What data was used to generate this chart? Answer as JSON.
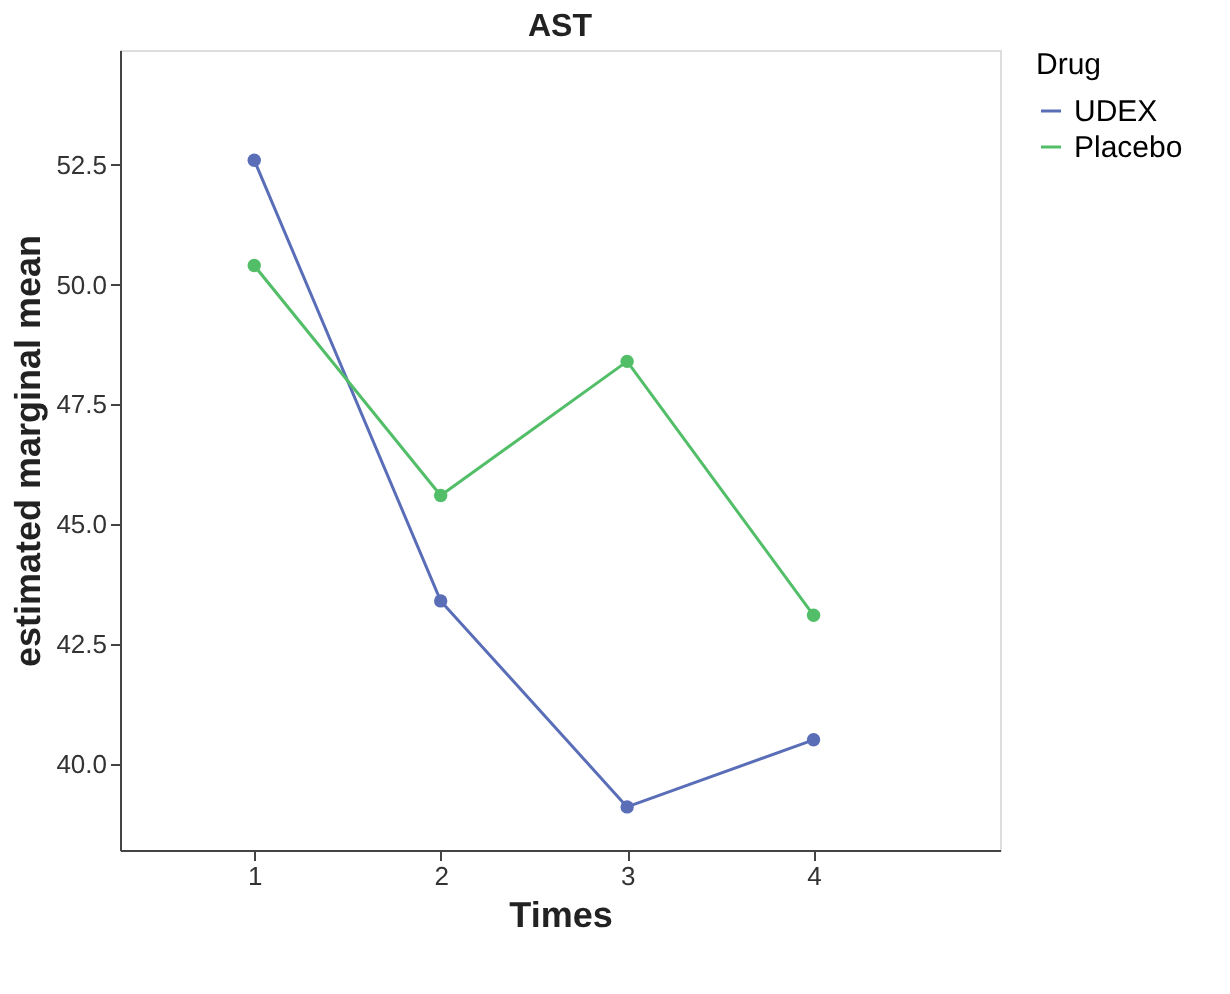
{
  "chart_data": {
    "type": "line",
    "title": "AST",
    "xlabel": "Times",
    "ylabel": "estimated marginal mean",
    "legend_title": "Drug",
    "x": [
      1,
      2,
      3,
      4
    ],
    "series": [
      {
        "name": "UDEX",
        "color": "#5a6eb8",
        "values": [
          52.6,
          43.4,
          39.1,
          40.5
        ]
      },
      {
        "name": "Placebo",
        "color": "#52be68",
        "values": [
          50.4,
          45.6,
          48.4,
          43.1
        ]
      }
    ],
    "xlim": [
      0.28,
      5.0
    ],
    "xticks": [
      1,
      2,
      3,
      4
    ],
    "ylim": [
      38.2,
      54.9
    ],
    "yticks": [
      {
        "value": 40,
        "label": "40.0"
      },
      42.5,
      {
        "value": 45,
        "label": "45.0"
      },
      47.5,
      {
        "value": 50,
        "label": "50.0"
      },
      52.5
    ],
    "grid": false,
    "legend": "right",
    "marker": "circle",
    "line_style": "solid"
  }
}
